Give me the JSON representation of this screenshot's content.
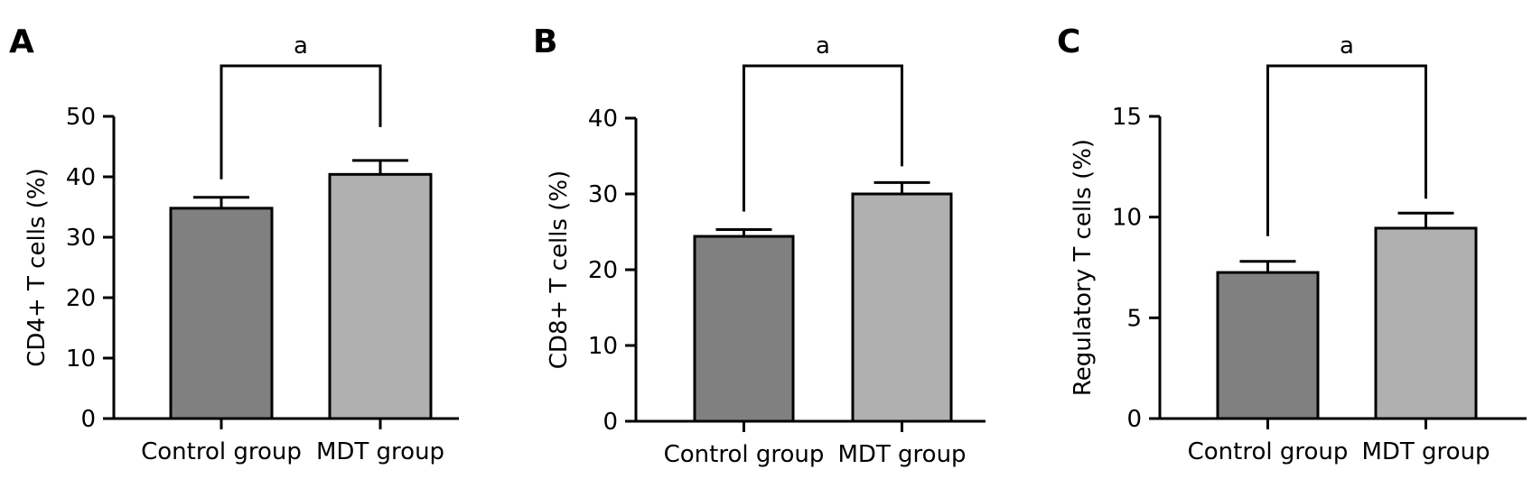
{
  "chart_data": [
    {
      "type": "bar",
      "panel_label": "A",
      "categories": [
        "Control group",
        "MDT group"
      ],
      "values": [
        34.8,
        40.4
      ],
      "error_upper": [
        36.6,
        42.7
      ],
      "ylabel": "CD4+ T cells (%)",
      "ylim": [
        0,
        50
      ],
      "yticks": [
        0,
        10,
        20,
        30,
        40,
        50
      ],
      "significance": "a",
      "bar_colors": [
        "#808080",
        "#b0b0b0"
      ],
      "grid": false
    },
    {
      "type": "bar",
      "panel_label": "B",
      "categories": [
        "Control group",
        "MDT group"
      ],
      "values": [
        24.4,
        30.0
      ],
      "error_upper": [
        25.3,
        31.5
      ],
      "ylabel": "CD8+ T cells (%)",
      "ylim": [
        0,
        40
      ],
      "yticks": [
        0,
        10,
        20,
        30,
        40
      ],
      "significance": "a",
      "bar_colors": [
        "#808080",
        "#b0b0b0"
      ],
      "grid": false
    },
    {
      "type": "bar",
      "panel_label": "C",
      "categories": [
        "Control group",
        "MDT group"
      ],
      "values": [
        7.25,
        9.45
      ],
      "error_upper": [
        7.8,
        10.2
      ],
      "ylabel": "Regulatory T cells (%)",
      "ylim": [
        0,
        15
      ],
      "yticks": [
        0,
        5,
        10,
        15
      ],
      "significance": "a",
      "bar_colors": [
        "#808080",
        "#b0b0b0"
      ],
      "grid": false
    }
  ]
}
